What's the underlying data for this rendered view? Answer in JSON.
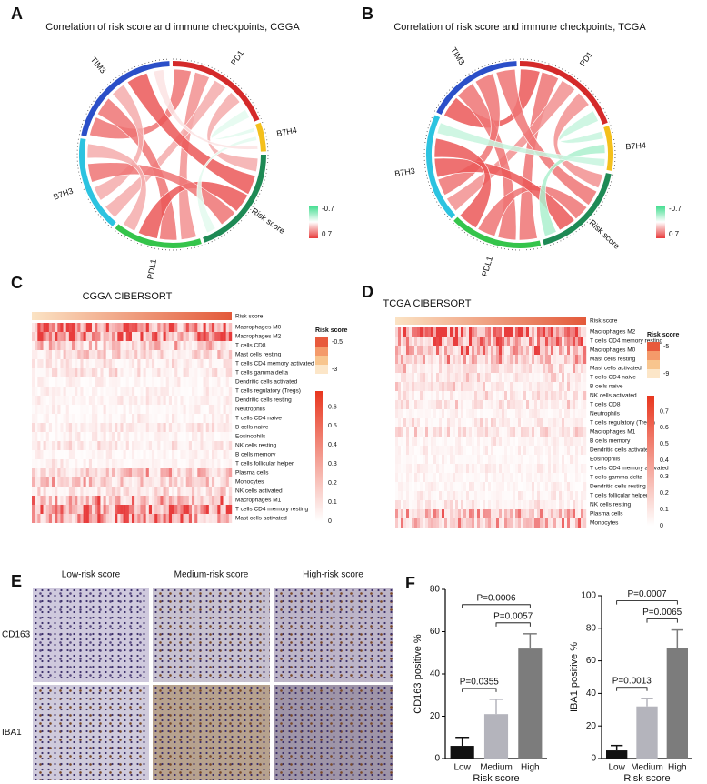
{
  "panel_labels": [
    "A",
    "B",
    "C",
    "D",
    "E",
    "F"
  ],
  "chords": [
    {
      "title": "Correlation of risk score and immune checkpoints, CGGA",
      "legend_ticks": [
        -0.7,
        0.7
      ],
      "segments": [
        {
          "name": "PD1",
          "color": "#d42a2a"
        },
        {
          "name": "B7H4",
          "color": "#f4c01c"
        },
        {
          "name": "Risk score",
          "color": "#1e8a55"
        },
        {
          "name": "PDL1",
          "color": "#35c44b"
        },
        {
          "name": "B7H3",
          "color": "#2cc3e0"
        },
        {
          "name": "TIM3",
          "color": "#2b4fc8"
        }
      ],
      "links": [
        {
          "source": "PD1",
          "target": "TIM3",
          "r": 0.5
        },
        {
          "source": "PD1",
          "target": "PDL1",
          "r": 0.4
        },
        {
          "source": "PD1",
          "target": "B7H3",
          "r": 0.3
        },
        {
          "source": "PD1",
          "target": "Risk score",
          "r": 0.3
        },
        {
          "source": "PD1",
          "target": "B7H4",
          "r": -0.1
        },
        {
          "source": "TIM3",
          "target": "PDL1",
          "r": 0.5
        },
        {
          "source": "TIM3",
          "target": "B7H3",
          "r": 0.3
        },
        {
          "source": "TIM3",
          "target": "Risk score",
          "r": 0.6
        },
        {
          "source": "PDL1",
          "target": "Risk score",
          "r": 0.6
        },
        {
          "source": "B7H3",
          "target": "Risk score",
          "r": 0.5
        },
        {
          "source": "B7H3",
          "target": "PDL1",
          "r": 0.3
        },
        {
          "source": "B7H4",
          "target": "Risk score",
          "r": -0.1
        },
        {
          "source": "B7H4",
          "target": "TIM3",
          "r": 0.1
        }
      ]
    },
    {
      "title": "Correlation of risk score and immune checkpoints, TCGA",
      "legend_ticks": [
        -0.7,
        0.7
      ],
      "segments": [
        {
          "name": "PD1",
          "color": "#d42a2a"
        },
        {
          "name": "B7H4",
          "color": "#f4c01c"
        },
        {
          "name": "Risk score",
          "color": "#1e8a55"
        },
        {
          "name": "PDL1",
          "color": "#35c44b"
        },
        {
          "name": "B7H3",
          "color": "#2cc3e0"
        },
        {
          "name": "TIM3",
          "color": "#2b4fc8"
        }
      ],
      "links": [
        {
          "source": "PD1",
          "target": "TIM3",
          "r": 0.6
        },
        {
          "source": "PD1",
          "target": "PDL1",
          "r": 0.5
        },
        {
          "source": "PD1",
          "target": "B7H3",
          "r": 0.4
        },
        {
          "source": "PD1",
          "target": "Risk score",
          "r": 0.4
        },
        {
          "source": "PD1",
          "target": "B7H4",
          "r": -0.2
        },
        {
          "source": "TIM3",
          "target": "PDL1",
          "r": 0.5
        },
        {
          "source": "TIM3",
          "target": "B7H3",
          "r": 0.5
        },
        {
          "source": "TIM3",
          "target": "Risk score",
          "r": 0.5
        },
        {
          "source": "PDL1",
          "target": "Risk score",
          "r": 0.5
        },
        {
          "source": "B7H3",
          "target": "Risk score",
          "r": 0.6
        },
        {
          "source": "B7H3",
          "target": "PDL1",
          "r": 0.6
        },
        {
          "source": "B7H4",
          "target": "Risk score",
          "r": -0.3
        },
        {
          "source": "B7H4",
          "target": "B7H3",
          "r": -0.2
        }
      ]
    }
  ],
  "heatmaps": [
    {
      "title": "CGGA   CIBERSORT",
      "risk_label": "Risk score",
      "legend_title": "Risk score",
      "risk_ticks": [
        -0.5,
        -3
      ],
      "scale_ticks": [
        0.6,
        0.5,
        0.4,
        0.3,
        0.2,
        0.1,
        0
      ],
      "rows": [
        "Macrophages M0",
        "Macrophages M2",
        "T cells CD8",
        "Mast cells resting",
        "T cells CD4 memory activated",
        "T cells gamma delta",
        "Dendritic cells activated",
        "T cells regulatory (Tregs)",
        "Dendritic cells resting",
        "Neutrophils",
        "T cells CD4 naive",
        "B cells naive",
        "Eosinophils",
        "NK cells resting",
        "B cells memory",
        "T cells follicular helper",
        "Plasma cells",
        "Monocytes",
        "NK cells activated",
        "Macrophages M1",
        "T cells CD4 memory resting",
        "Mast cells activated"
      ]
    },
    {
      "title": "TCGA   CIBERSORT",
      "risk_label": "Risk score",
      "legend_title": "Risk score",
      "risk_ticks": [
        -5,
        -9
      ],
      "scale_ticks": [
        0.7,
        0.6,
        0.5,
        0.4,
        0.3,
        0.2,
        0.1,
        0
      ],
      "rows": [
        "Macrophages M2",
        "T cells CD4 memory resting",
        "Macrophages M0",
        "Mast cells resting",
        "Mast cells activated",
        "T cells CD4 naive",
        "B cells naive",
        "NK cells activated",
        "T cells CD8",
        "Neutrophils",
        "T cells regulatory (Tregs)",
        "Macrophages M1",
        "B cells memory",
        "Dendritic cells activated",
        "Eosinophils",
        "T cells CD4 memory activated",
        "T cells gamma delta",
        "Dendritic cells resting",
        "T cells follicular helper",
        "NK cells resting",
        "Plasma cells",
        "Monocytes"
      ]
    }
  ],
  "ihc": {
    "columns": [
      "Low-risk score",
      "Medium-risk score",
      "High-risk score"
    ],
    "rows": [
      "CD163",
      "IBA1"
    ]
  },
  "chart_data": [
    {
      "type": "bar",
      "ylabel": "CD163 positive %",
      "xlabel": "Risk score",
      "categories": [
        "Low",
        "Medium",
        "High"
      ],
      "values": [
        6,
        21,
        52
      ],
      "errors": [
        4,
        7,
        7
      ],
      "colors": [
        "#111111",
        "#b4b4bc",
        "#7c7c7c"
      ],
      "ylim": [
        0,
        80
      ],
      "yticks": [
        0,
        20,
        40,
        60,
        80
      ],
      "comparisons": [
        {
          "label": "P=0.0355",
          "between": [
            "Low",
            "Medium"
          ]
        },
        {
          "label": "P=0.0057",
          "between": [
            "Medium",
            "High"
          ]
        },
        {
          "label": "P=0.0006",
          "between": [
            "Low",
            "High"
          ]
        }
      ]
    },
    {
      "type": "bar",
      "ylabel": "IBA1 positive %",
      "xlabel": "Risk score",
      "categories": [
        "Low",
        "Medium",
        "High"
      ],
      "values": [
        5,
        32,
        68
      ],
      "errors": [
        3,
        5,
        11
      ],
      "colors": [
        "#111111",
        "#b4b4bc",
        "#7c7c7c"
      ],
      "ylim": [
        0,
        100
      ],
      "yticks": [
        0,
        20,
        40,
        60,
        80,
        100
      ],
      "comparisons": [
        {
          "label": "P=0.0013",
          "between": [
            "Low",
            "Medium"
          ]
        },
        {
          "label": "P=0.0065",
          "between": [
            "Medium",
            "High"
          ]
        },
        {
          "label": "P=0.0007",
          "between": [
            "Low",
            "High"
          ]
        }
      ]
    }
  ]
}
